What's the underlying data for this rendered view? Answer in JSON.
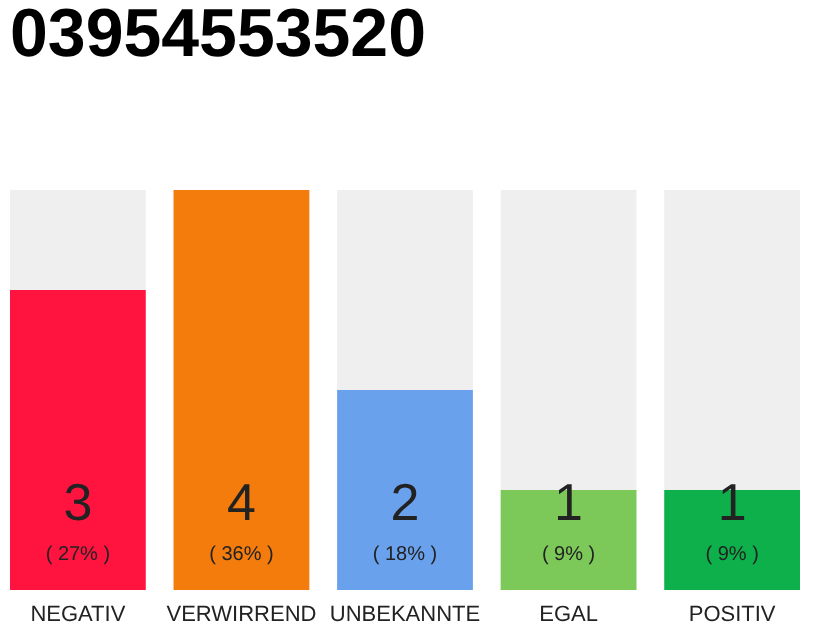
{
  "chart_data": {
    "type": "bar",
    "title": "03954553520",
    "categories": [
      "NEGATIV",
      "VERWIRREND",
      "UNBEKANNTE",
      "EGAL",
      "POSITIV"
    ],
    "values": [
      3,
      4,
      2,
      1,
      1
    ],
    "colors": [
      "#ff1440",
      "#f47c0c",
      "#6aa1ec",
      "#7cc95a",
      "#0db04a"
    ],
    "ylim": [
      0,
      4
    ],
    "data_labels": true,
    "annotations": [
      "( 27% )",
      "( 36% )",
      "( 18% )",
      "( 9% )",
      "( 9% )"
    ]
  }
}
